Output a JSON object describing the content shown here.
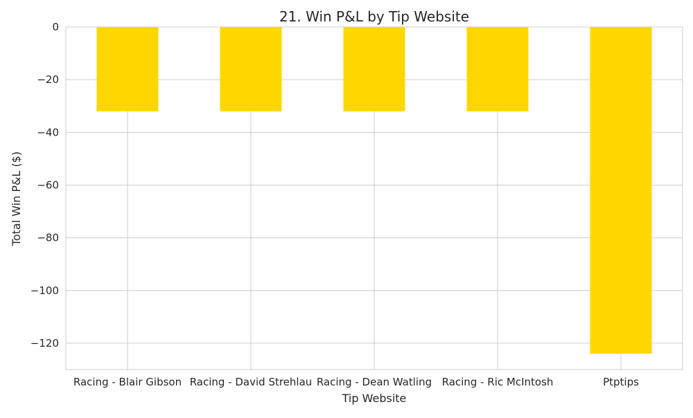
{
  "chart_data": {
    "type": "bar",
    "title": "21. Win P&L by Tip Website",
    "xlabel": "Tip Website",
    "ylabel": "Total Win P&L ($)",
    "categories": [
      "Racing - Blair Gibson",
      "Racing - David Strehlau",
      "Racing - Dean Watling",
      "Racing - Ric McIntosh",
      "Ptptips"
    ],
    "values": [
      -32,
      -32,
      -32,
      -32,
      -124
    ],
    "ylim": [
      -130,
      0
    ],
    "yticks": [
      0,
      -20,
      -40,
      -60,
      -80,
      -100,
      -120
    ],
    "ytick_labels": [
      "0",
      "−20",
      "−40",
      "−60",
      "−80",
      "−100",
      "−120"
    ],
    "grid": true,
    "legend": "none",
    "colors": {
      "bar": "#ffd700",
      "grid": "#cccccc",
      "axis": "#cccccc",
      "text": "#262626",
      "background": "#ffffff"
    }
  }
}
